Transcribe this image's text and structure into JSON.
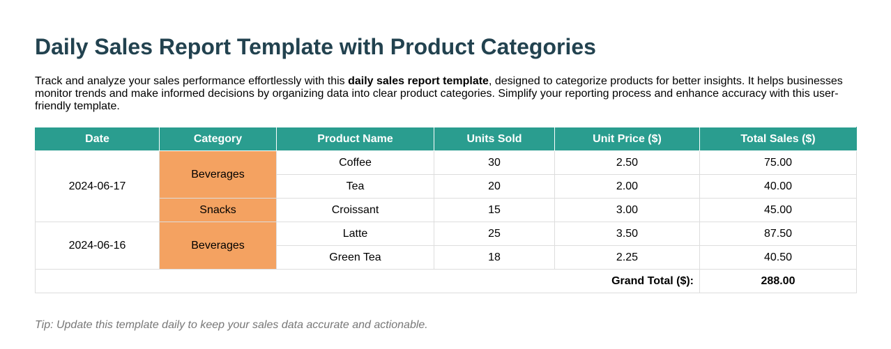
{
  "page": {
    "title": "Daily Sales Report Template with Product Categories",
    "intro": {
      "part1": "Track and analyze your sales performance effortlessly with this ",
      "bold": "daily sales report template",
      "part2": ", designed to categorize products for better insights. It helps businesses monitor trends and make informed decisions by organizing data into clear product categories. Simplify your reporting process and enhance accuracy with this user-friendly template."
    },
    "tip": "Tip: Update this template daily to keep your sales data accurate and actionable."
  },
  "colors": {
    "title": "#22424f",
    "header_bg": "#2a9d8f",
    "category_bg": "#f4a261",
    "tip": "#777777"
  },
  "table": {
    "headers": [
      "Date",
      "Category",
      "Product Name",
      "Units Sold",
      "Unit Price ($)",
      "Total Sales ($)"
    ],
    "groups": [
      {
        "date": "2024-06-17",
        "categories": [
          {
            "name": "Beverages",
            "rows": [
              {
                "product": "Coffee",
                "units": "30",
                "price": "2.50",
                "total": "75.00"
              },
              {
                "product": "Tea",
                "units": "20",
                "price": "2.00",
                "total": "40.00"
              }
            ]
          },
          {
            "name": "Snacks",
            "rows": [
              {
                "product": "Croissant",
                "units": "15",
                "price": "3.00",
                "total": "45.00"
              }
            ]
          }
        ]
      },
      {
        "date": "2024-06-16",
        "categories": [
          {
            "name": "Beverages",
            "rows": [
              {
                "product": "Latte",
                "units": "25",
                "price": "3.50",
                "total": "87.50"
              },
              {
                "product": "Green Tea",
                "units": "18",
                "price": "2.25",
                "total": "40.50"
              }
            ]
          }
        ]
      }
    ],
    "grand_total_label": "Grand Total ($):",
    "grand_total_value": "288.00"
  }
}
